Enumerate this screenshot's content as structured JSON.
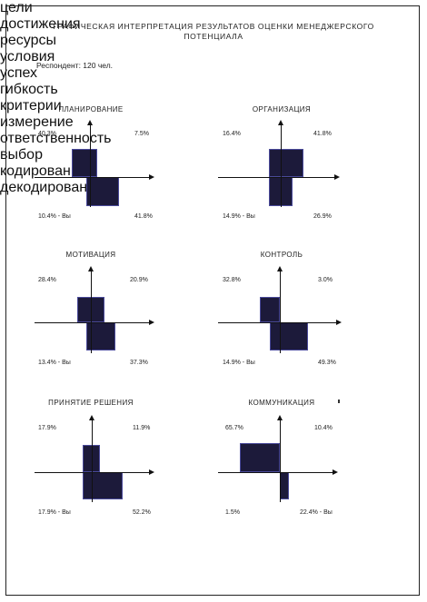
{
  "header": {
    "title_line1": "ГРАФИЧЕСКАЯ ИНТЕРПРЕТАЦИЯ РЕЗУЛЬТАТОВ ОЦЕНКИ МЕНЕДЖЕРСКОГО",
    "title_line2": "ПОТЕНЦИАЛА",
    "respondent": "Респондент: 120 чел."
  },
  "colors": {
    "box_fill": "#1c1a3a",
    "box_border": "#4a4a9a",
    "axis": "#111111"
  },
  "panels": [
    {
      "title": "ПЛАНИРОВАНИЕ",
      "up_label": "цели",
      "right_label": "достижения",
      "tl": "40.3%",
      "tr": "7.5%",
      "bl": "10.4% - Вы",
      "br": "41.8%"
    },
    {
      "title": "ОРГАНИЗАЦИЯ",
      "up_label": "ресурсы",
      "right_label": "условия",
      "tl": "16.4%",
      "tr": "41.8%",
      "bl": "14.9% - Вы",
      "br": "26.9%"
    },
    {
      "title": "МОТИВАЦИЯ",
      "up_label": "успех",
      "right_label": "гибкость",
      "tl": "28.4%",
      "tr": "20.9%",
      "bl": "13.4% - Вы",
      "br": "37.3%"
    },
    {
      "title": "КОНТРОЛЬ",
      "up_label": "критерии",
      "right_label": "измерение",
      "tl": "32.8%",
      "tr": "3.0%",
      "bl": "14.9% - Вы",
      "br": "49.3%"
    },
    {
      "title": "ПРИНЯТИЕ РЕШЕНИЯ",
      "up_label": "ответственность",
      "right_label": "выбор",
      "tl": "17.9%",
      "tr": "11.9%",
      "bl": "17.9% - Вы",
      "br": "52.2%"
    },
    {
      "title": "КОММУНИКАЦИЯ",
      "up_label": "кодирование",
      "right_label": "декодирование",
      "tl": "65.7%",
      "tr": "10.4%",
      "bl": "1.5%",
      "br": "22.4% - Вы"
    }
  ]
}
